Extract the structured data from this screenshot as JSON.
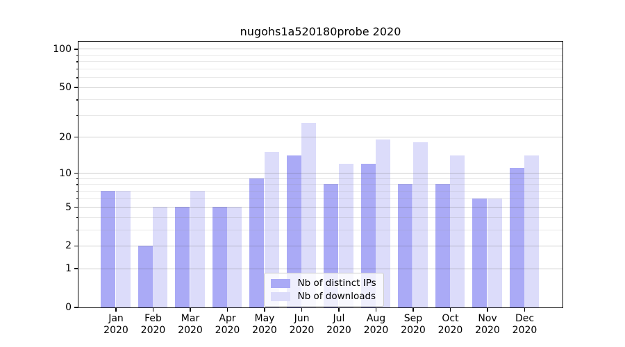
{
  "chart_data": {
    "type": "bar",
    "title": "nugohs1a520180probe 2020",
    "categories": [
      "Jan 2020",
      "Feb 2020",
      "Mar 2020",
      "Apr 2020",
      "May 2020",
      "Jun 2020",
      "Jul 2020",
      "Aug 2020",
      "Sep 2020",
      "Oct 2020",
      "Nov 2020",
      "Dec 2020"
    ],
    "series": [
      {
        "name": "Nb of distinct IPs",
        "color": "#aaaaf6",
        "values": [
          7,
          2,
          5,
          5,
          9,
          14,
          8,
          12,
          8,
          8,
          6,
          11
        ]
      },
      {
        "name": "Nb of downloads",
        "color": "#dcdcfa",
        "values": [
          7,
          5,
          7,
          5,
          15,
          26,
          12,
          19,
          18,
          14,
          6,
          14
        ]
      }
    ],
    "xlabel": "",
    "ylabel": "",
    "yscale": "log10(1+value)",
    "y_ticks": [
      0,
      1,
      2,
      5,
      10,
      20,
      50,
      100
    ],
    "y_minor_gridlines": [
      3,
      4,
      6,
      7,
      8,
      9,
      30,
      40,
      60,
      70,
      80,
      90
    ],
    "ylim": [
      0,
      115
    ],
    "grid": true,
    "grid_over_bars": true,
    "legend_position": "lower center"
  },
  "colors": {
    "background": "#ffffff",
    "axis": "#000000",
    "grid_major": "#cccccc",
    "grid_minor": "#e8e8e8",
    "legend_border": "#cccccc"
  }
}
